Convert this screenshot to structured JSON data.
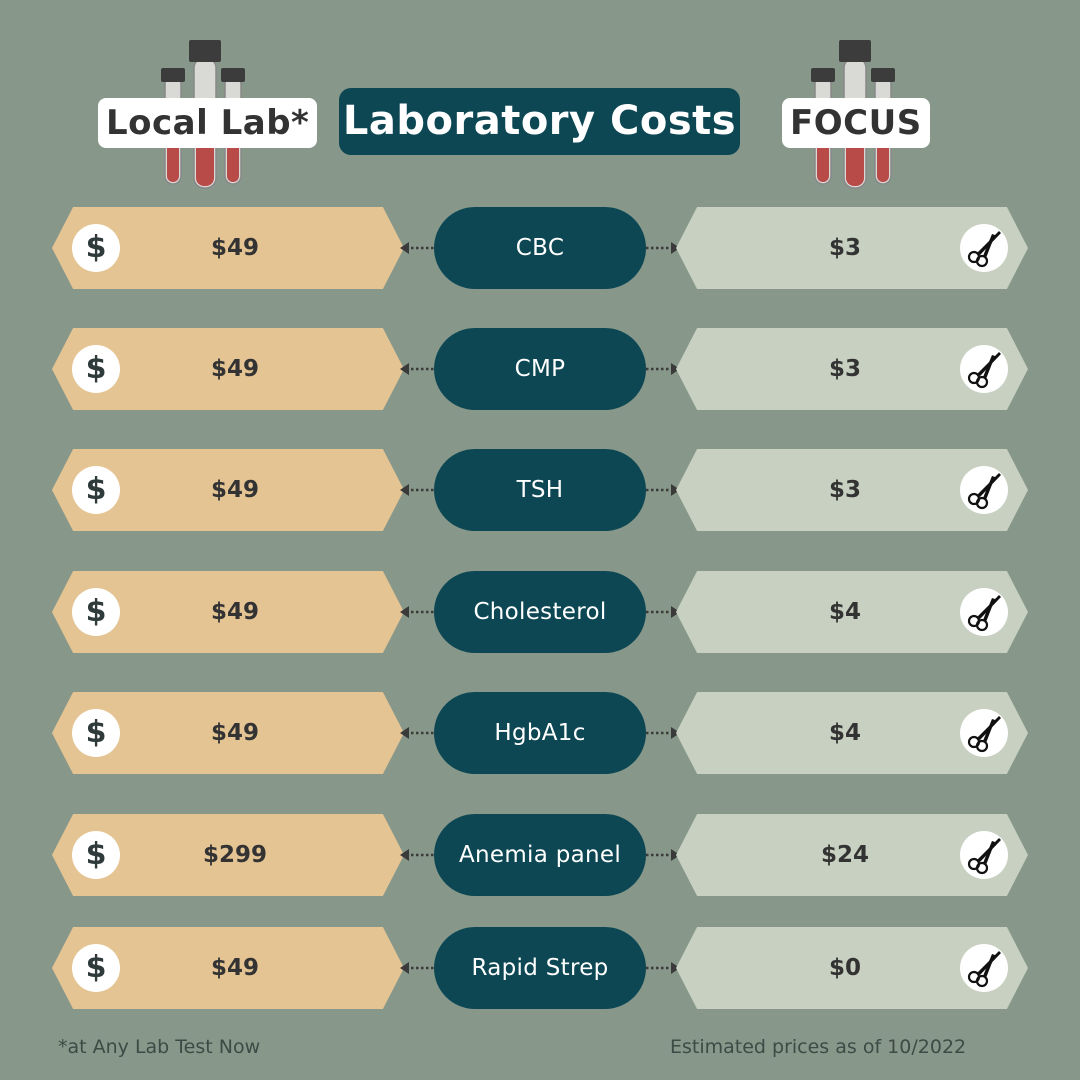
{
  "colors": {
    "background": "#87988a",
    "title_bg": "#0d4754",
    "local_bg": "#e5c493",
    "focus_bg": "#c8d1c1",
    "tube_fill": "#b84a48"
  },
  "header": {
    "local_label": "Local Lab*",
    "title": "Laboratory Costs",
    "focus_label": "FOCUS"
  },
  "rows": [
    {
      "test": "CBC",
      "local_price": "$49",
      "focus_price": "$3"
    },
    {
      "test": "CMP",
      "local_price": "$49",
      "focus_price": "$3"
    },
    {
      "test": "TSH",
      "local_price": "$49",
      "focus_price": "$3"
    },
    {
      "test": "Cholesterol",
      "local_price": "$49",
      "focus_price": "$4"
    },
    {
      "test": "HgbA1c",
      "local_price": "$49",
      "focus_price": "$4"
    },
    {
      "test": "Anemia panel",
      "local_price": "$299",
      "focus_price": "$24"
    },
    {
      "test": "Rapid Strep",
      "local_price": "$49",
      "focus_price": "$0"
    }
  ],
  "icons": {
    "local": "dollar-icon",
    "focus": "scissors-icon",
    "header": "test-tubes-icon"
  },
  "footer": {
    "left": "*at Any Lab Test Now",
    "right": "Estimated prices as of 10/2022"
  }
}
